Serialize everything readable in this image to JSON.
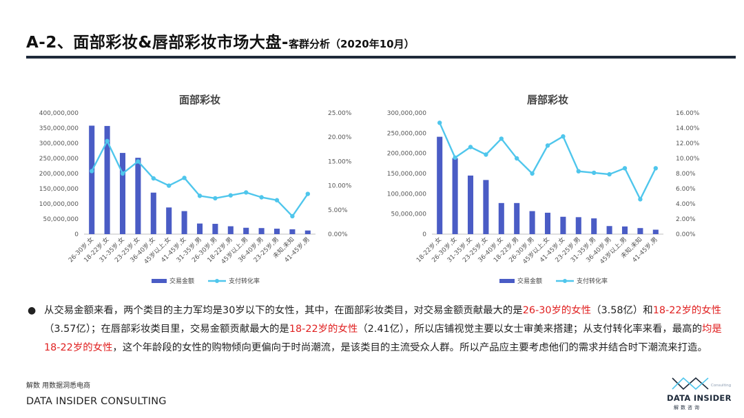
{
  "header": {
    "title_main": "A-2、面部彩妆&唇部彩妆市场大盘",
    "title_dash": "-",
    "title_sub": "客群分析（2020年10月）"
  },
  "colors": {
    "bar": "#4a5cc5",
    "line": "#4fc6ec",
    "highlight": "#e02020",
    "rule": "#1e2a3a"
  },
  "chart_data": [
    {
      "type": "bar",
      "title": "面部彩妆",
      "categories": [
        "26-30岁,女",
        "18-22岁,女",
        "31-35岁,女",
        "23-25岁,女",
        "36-40岁,女",
        "45岁以上,女",
        "41-45岁,女",
        "31-35岁,男",
        "26-30岁,男",
        "18-22岁,男",
        "45岁以上,男",
        "36-40岁,男",
        "23-25岁,男",
        "未知,未知",
        "41-45岁,男"
      ],
      "y_ticks": [
        "0",
        "50,000,000",
        "100,000,000",
        "150,000,000",
        "200,000,000",
        "250,000,000",
        "300,000,000",
        "350,000,000",
        "400,000,000"
      ],
      "y2_ticks": [
        "0.00%",
        "5.00%",
        "10.00%",
        "15.00%",
        "20.00%",
        "25.00%"
      ],
      "ylim": [
        0,
        400000000
      ],
      "y2lim": [
        0,
        25
      ],
      "series": [
        {
          "name": "交易金额",
          "type": "bar",
          "axis": "left",
          "values": [
            358000000,
            357000000,
            268000000,
            252000000,
            137000000,
            88000000,
            76000000,
            35000000,
            34000000,
            26000000,
            21000000,
            20000000,
            18000000,
            16000000,
            12000000
          ]
        },
        {
          "name": "支付转化率",
          "type": "line",
          "axis": "right",
          "values": [
            13.0,
            19.2,
            12.5,
            15.0,
            11.5,
            10.0,
            11.6,
            7.9,
            7.4,
            8.0,
            8.6,
            7.6,
            7.0,
            3.7,
            8.3
          ]
        }
      ],
      "legend_position": "bottom"
    },
    {
      "type": "bar",
      "title": "唇部彩妆",
      "categories": [
        "18-22岁,女",
        "26-30岁,女",
        "31-35岁,女",
        "23-25岁,女",
        "36-40岁,女",
        "18-22岁,男",
        "26-30岁,男",
        "45岁以上,女",
        "41-45岁,女",
        "23-25岁,男",
        "31-35岁,男",
        "36-40岁,男",
        "45岁以上,男",
        "未知,未知",
        "41-45岁,男"
      ],
      "y_ticks": [
        "0",
        "50,000,000",
        "100,000,000",
        "150,000,000",
        "200,000,000",
        "250,000,000",
        "300,000,000"
      ],
      "y2_ticks": [
        "0.00%",
        "2.00%",
        "4.00%",
        "6.00%",
        "8.00%",
        "10.00%",
        "12.00%",
        "14.00%",
        "16.00%"
      ],
      "ylim": [
        0,
        300000000
      ],
      "y2lim": [
        0,
        16
      ],
      "series": [
        {
          "name": "交易金额",
          "type": "bar",
          "axis": "left",
          "values": [
            241000000,
            188000000,
            145000000,
            134000000,
            77000000,
            77000000,
            57000000,
            53000000,
            43000000,
            42000000,
            39000000,
            20000000,
            19000000,
            15000000,
            11000000
          ]
        },
        {
          "name": "支付转化率",
          "type": "line",
          "axis": "right",
          "values": [
            14.7,
            10.1,
            11.5,
            10.5,
            12.6,
            10.0,
            8.0,
            11.7,
            12.9,
            8.3,
            8.1,
            7.9,
            8.7,
            4.6,
            8.7
          ]
        }
      ],
      "legend_position": "bottom"
    }
  ],
  "summary": {
    "bullet": "●",
    "segments": [
      {
        "text": "从交易金额来看，两个类目的主力军均是30岁以下的女性，其中，在面部彩妆类目，对交易金额贡献最大的是",
        "hl": false
      },
      {
        "text": "26-30岁的女性",
        "hl": true
      },
      {
        "text": "（3.58亿）和",
        "hl": false
      },
      {
        "text": "18-22岁的女性",
        "hl": true
      },
      {
        "text": "（3.57亿）；在唇部彩妆类目里，交易金额贡献最大的是",
        "hl": false
      },
      {
        "text": "18-22岁的女性",
        "hl": true
      },
      {
        "text": "（2.41亿），所以店铺视觉主要以女士审美来搭建；从支付转化率来看，最高的",
        "hl": false
      },
      {
        "text": "均是18-22岁的女性",
        "hl": true
      },
      {
        "text": "，这个年龄段的女性的购物倾向更偏向于时尚潮流，是该类目的主流受众人群。所以产品应主要考虑他们的需求并结合时下潮流来打造。",
        "hl": false
      }
    ]
  },
  "footer": {
    "small": "解数 用数据洞悉电商",
    "big": "DATA INSIDER CONSULTING"
  },
  "brand": {
    "tag": "Consulting",
    "name": "DATA INSIDER",
    "cn": "解数咨询"
  }
}
